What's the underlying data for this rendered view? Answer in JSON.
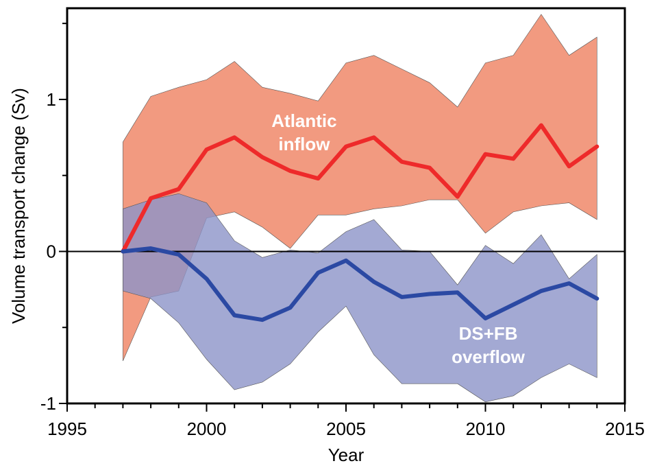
{
  "chart_data": {
    "type": "line",
    "title": "",
    "xlabel": "Year",
    "ylabel": "Volume transport change (Sv)",
    "xlim": [
      1995,
      2015
    ],
    "ylim": [
      -1,
      1.6
    ],
    "xticks": [
      {
        "value": 1995,
        "label": "1995"
      },
      {
        "value": 2000,
        "label": "2000"
      },
      {
        "value": 2005,
        "label": "2005"
      },
      {
        "value": 2010,
        "label": "2010"
      },
      {
        "value": 2015,
        "label": "2015"
      }
    ],
    "yticks": [
      {
        "value": -1,
        "label": "-1"
      },
      {
        "value": 0,
        "label": "0"
      },
      {
        "value": 1,
        "label": "1"
      }
    ],
    "zero_line": 0,
    "x": [
      1997,
      1998,
      1999,
      2000,
      2001,
      2002,
      2003,
      2004,
      2005,
      2006,
      2007,
      2008,
      2009,
      2010,
      2011,
      2012,
      2013,
      2014
    ],
    "series": [
      {
        "name": "Atlantic inflow",
        "color": "#ee2a2a",
        "band_color": "#f29a80",
        "values": [
          0.0,
          0.35,
          0.41,
          0.67,
          0.75,
          0.62,
          0.53,
          0.48,
          0.69,
          0.75,
          0.59,
          0.55,
          0.36,
          0.64,
          0.61,
          0.83,
          0.56,
          0.69
        ],
        "upper": [
          0.72,
          1.02,
          1.08,
          1.13,
          1.25,
          1.08,
          1.04,
          0.99,
          1.24,
          1.29,
          1.2,
          1.11,
          0.95,
          1.24,
          1.29,
          1.56,
          1.29,
          1.41
        ],
        "lower": [
          -0.72,
          -0.3,
          -0.26,
          0.22,
          0.26,
          0.16,
          0.02,
          0.24,
          0.24,
          0.28,
          0.3,
          0.34,
          0.34,
          0.12,
          0.26,
          0.3,
          0.32,
          0.21
        ]
      },
      {
        "name": "DS+FB overflow",
        "color": "#2b49a3",
        "band_color": "#8c93c8",
        "values": [
          0.0,
          0.02,
          -0.02,
          -0.18,
          -0.42,
          -0.45,
          -0.37,
          -0.14,
          -0.06,
          -0.2,
          -0.3,
          -0.28,
          -0.27,
          -0.44,
          -0.35,
          -0.26,
          -0.21,
          -0.31
        ],
        "upper": [
          0.28,
          0.34,
          0.38,
          0.32,
          0.07,
          -0.04,
          0.01,
          -0.01,
          0.13,
          0.21,
          0.01,
          0.0,
          -0.22,
          0.04,
          -0.08,
          0.11,
          -0.18,
          -0.02
        ],
        "lower": [
          -0.26,
          -0.31,
          -0.47,
          -0.71,
          -0.91,
          -0.86,
          -0.74,
          -0.53,
          -0.36,
          -0.68,
          -0.87,
          -0.87,
          -0.87,
          -0.99,
          -0.95,
          -0.83,
          -0.74,
          -0.83
        ]
      }
    ],
    "annotations": [
      {
        "lines": [
          "Atlantic",
          "inflow"
        ],
        "series": "Atlantic inflow",
        "anchor_x": 2003.5,
        "anchor_y": 0.82
      },
      {
        "lines": [
          "DS+FB",
          "overflow"
        ],
        "series": "DS+FB overflow",
        "anchor_x": 2010.1,
        "anchor_y": -0.58
      }
    ],
    "grid": false,
    "legend": "none"
  }
}
